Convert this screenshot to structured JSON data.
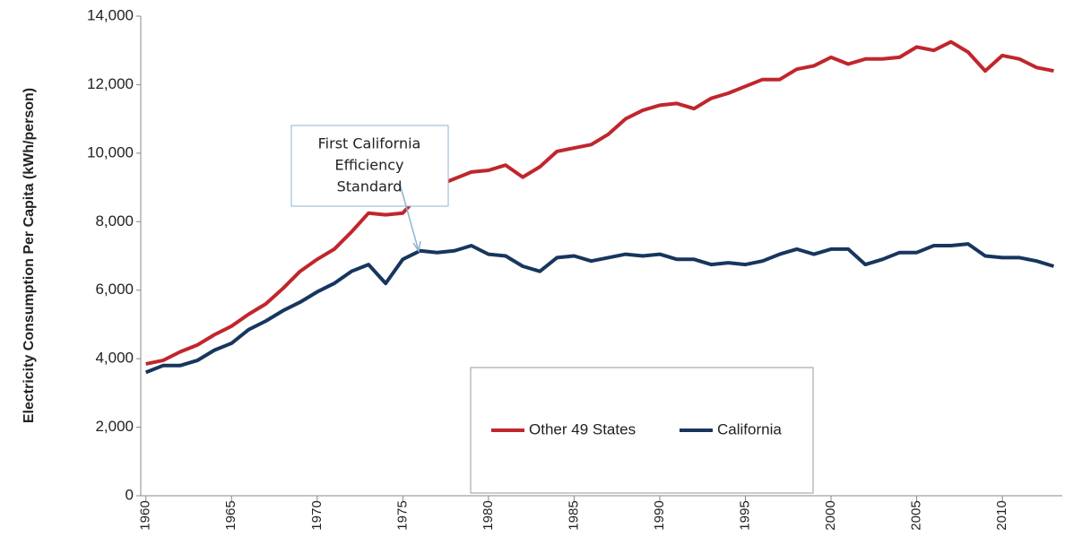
{
  "chart_data": {
    "type": "line",
    "y_label": "Electricity Consumption Per Capita (kWh/person)",
    "x": [
      1960,
      1961,
      1962,
      1963,
      1964,
      1965,
      1966,
      1967,
      1968,
      1969,
      1970,
      1971,
      1972,
      1973,
      1974,
      1975,
      1976,
      1977,
      1978,
      1979,
      1980,
      1981,
      1982,
      1983,
      1984,
      1985,
      1986,
      1987,
      1988,
      1989,
      1990,
      1991,
      1992,
      1993,
      1994,
      1995,
      1996,
      1997,
      1998,
      1999,
      2000,
      2001,
      2002,
      2003,
      2004,
      2005,
      2006,
      2007,
      2008,
      2009,
      2010,
      2011,
      2012,
      2013
    ],
    "series": [
      {
        "name": "Other 49 States",
        "color": "#c0262c",
        "values": [
          3850,
          3950,
          4200,
          4400,
          4700,
          4950,
          5300,
          5600,
          6050,
          6550,
          6900,
          7200,
          7700,
          8250,
          8200,
          8250,
          8800,
          9050,
          9250,
          9450,
          9500,
          9650,
          9300,
          9600,
          10050,
          10150,
          10250,
          10550,
          11000,
          11250,
          11400,
          11450,
          11300,
          11600,
          11750,
          11950,
          12150,
          12150,
          12450,
          12550,
          12800,
          12600,
          12750,
          12750,
          12800,
          13100,
          13000,
          13250,
          12950,
          12400,
          12850,
          12750,
          12500,
          12400
        ]
      },
      {
        "name": "California",
        "color": "#17365d",
        "values": [
          3600,
          3800,
          3800,
          3950,
          4250,
          4450,
          4850,
          5100,
          5400,
          5650,
          5950,
          6200,
          6550,
          6750,
          6200,
          6900,
          7150,
          7100,
          7150,
          7300,
          7050,
          7000,
          6700,
          6550,
          6950,
          7000,
          6850,
          6950,
          7050,
          7000,
          7050,
          6900,
          6900,
          6750,
          6800,
          6750,
          6850,
          7050,
          7200,
          7050,
          7200,
          7200,
          6750,
          6900,
          7100,
          7100,
          7300,
          7300,
          7350,
          7000,
          6950,
          6950,
          6850,
          6700
        ]
      }
    ],
    "xlim": [
      1959.7,
      2013.5
    ],
    "xticks": [
      1960,
      1965,
      1970,
      1975,
      1980,
      1985,
      1990,
      1995,
      2000,
      2005,
      2010
    ],
    "ylim": [
      0,
      14000
    ],
    "yticks": [
      0,
      {
        "value": 2000,
        "label": "2,000"
      },
      {
        "value": 4000,
        "label": "4,000"
      },
      {
        "value": 6000,
        "label": "6,000"
      },
      {
        "value": 8000,
        "label": "8,000"
      },
      {
        "value": 10000,
        "label": "10,000"
      },
      {
        "value": 12000,
        "label": "12,000"
      },
      {
        "value": 14000,
        "label": "14,000"
      }
    ],
    "grid": false,
    "legend": "bottom",
    "annotation": [
      "First California",
      "Efficiency",
      "Standard"
    ]
  }
}
